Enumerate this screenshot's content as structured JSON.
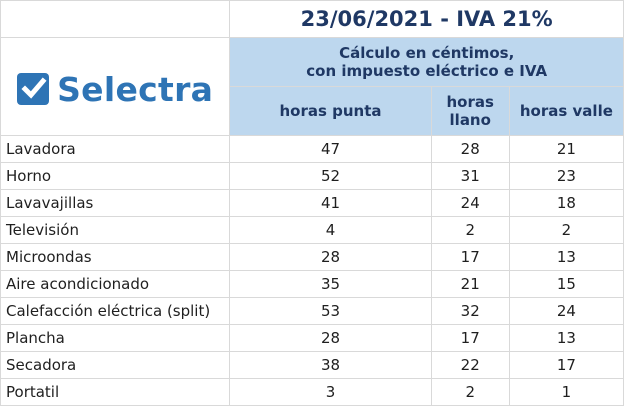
{
  "header": {
    "date_title": "23/06/2021 - IVA 21%",
    "calc_line1": "Cálculo en céntimos,",
    "calc_line2": "con impuesto eléctrico e IVA",
    "col_punta": "horas punta",
    "col_llano_1": "horas",
    "col_llano_2": "llano",
    "col_valle": "horas valle"
  },
  "logo": {
    "text": "Selectra",
    "icon": "checkbox-check-icon",
    "color": "#2e74b5"
  },
  "colors": {
    "header_bg": "#bdd7ee",
    "header_text": "#1f3864",
    "grid": "#d9d9d9"
  },
  "rows": [
    {
      "name": "Lavadora",
      "punta": "47",
      "llano": "28",
      "valle": "21"
    },
    {
      "name": "Horno",
      "punta": "52",
      "llano": "31",
      "valle": "23"
    },
    {
      "name": "Lavavajillas",
      "punta": "41",
      "llano": "24",
      "valle": "18"
    },
    {
      "name": "Televisión",
      "punta": "4",
      "llano": "2",
      "valle": "2"
    },
    {
      "name": "Microondas",
      "punta": "28",
      "llano": "17",
      "valle": "13"
    },
    {
      "name": "Aire acondicionado",
      "punta": "35",
      "llano": "21",
      "valle": "15"
    },
    {
      "name": "Calefacción eléctrica (split)",
      "punta": "53",
      "llano": "32",
      "valle": "24"
    },
    {
      "name": "Plancha",
      "punta": "28",
      "llano": "17",
      "valle": "13"
    },
    {
      "name": "Secadora",
      "punta": "38",
      "llano": "22",
      "valle": "17"
    },
    {
      "name": "Portatil",
      "punta": "3",
      "llano": "2",
      "valle": "1"
    }
  ]
}
